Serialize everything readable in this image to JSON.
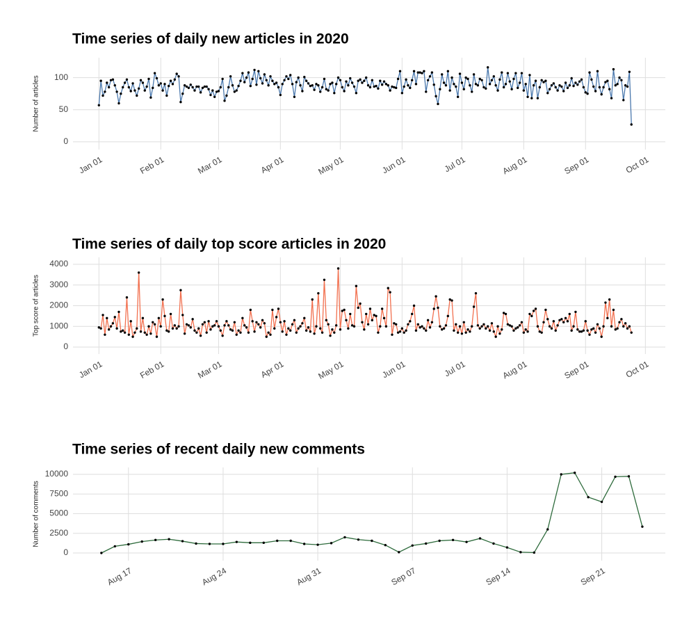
{
  "chart_data": [
    {
      "type": "line",
      "title": "Time series of daily new articles in 2020",
      "ylabel": "Number of articles",
      "color": "#4a78ad",
      "point_color": "#000000",
      "grid": true,
      "xlim": [
        -13,
        284
      ],
      "xticks": [
        {
          "value": 0,
          "label": "Jan 01"
        },
        {
          "value": 31,
          "label": "Feb 01"
        },
        {
          "value": 60,
          "label": "Mar 01"
        },
        {
          "value": 91,
          "label": "Apr 01"
        },
        {
          "value": 121,
          "label": "May 01"
        },
        {
          "value": 152,
          "label": "Jun 01"
        },
        {
          "value": 182,
          "label": "Jul 01"
        },
        {
          "value": 213,
          "label": "Aug 01"
        },
        {
          "value": 244,
          "label": "Sep 01"
        },
        {
          "value": 274,
          "label": "Oct 01"
        }
      ],
      "ylim": [
        -12,
        131
      ],
      "yticks": [
        0,
        50,
        100
      ],
      "x": [
        0,
        1,
        2,
        3,
        4,
        5,
        6,
        7,
        8,
        9,
        10,
        11,
        12,
        13,
        14,
        15,
        16,
        17,
        18,
        19,
        20,
        21,
        22,
        23,
        24,
        25,
        26,
        27,
        28,
        29,
        30,
        31,
        32,
        33,
        34,
        35,
        36,
        37,
        38,
        39,
        40,
        41,
        42,
        43,
        44,
        45,
        46,
        47,
        48,
        49,
        50,
        51,
        52,
        53,
        54,
        55,
        56,
        57,
        58,
        59,
        60,
        61,
        62,
        63,
        64,
        65,
        66,
        67,
        68,
        69,
        70,
        71,
        72,
        73,
        74,
        75,
        76,
        77,
        78,
        79,
        80,
        81,
        82,
        83,
        84,
        85,
        86,
        87,
        88,
        89,
        90,
        91,
        92,
        93,
        94,
        95,
        96,
        97,
        98,
        99,
        100,
        101,
        102,
        103,
        104,
        105,
        106,
        107,
        108,
        109,
        110,
        111,
        112,
        113,
        114,
        115,
        116,
        117,
        118,
        119,
        120,
        121,
        122,
        123,
        124,
        125,
        126,
        127,
        128,
        129,
        130,
        131,
        132,
        133,
        134,
        135,
        136,
        137,
        138,
        139,
        140,
        141,
        142,
        143,
        144,
        145,
        146,
        147,
        148,
        149,
        150,
        151,
        152,
        153,
        154,
        155,
        156,
        157,
        158,
        159,
        160,
        161,
        162,
        163,
        164,
        165,
        166,
        167,
        168,
        169,
        170,
        171,
        172,
        173,
        174,
        175,
        176,
        177,
        178,
        179,
        180,
        181,
        182,
        183,
        184,
        185,
        186,
        187,
        188,
        189,
        190,
        191,
        192,
        193,
        194,
        195,
        196,
        197,
        198,
        199,
        200,
        201,
        202,
        203,
        204,
        205,
        206,
        207,
        208,
        209,
        210,
        211,
        212,
        213,
        214,
        215,
        216,
        217,
        218,
        219,
        220,
        221,
        222,
        223,
        224,
        225,
        226,
        227,
        228,
        229,
        230,
        231,
        232,
        233,
        234,
        235,
        236,
        237,
        238,
        239,
        240,
        241,
        242,
        243,
        244,
        245,
        246,
        247,
        248,
        249,
        250,
        251,
        252,
        253,
        254,
        255,
        256,
        257,
        258,
        259,
        260,
        261,
        262,
        263,
        264,
        265,
        266,
        267
      ],
      "values": [
        57,
        95,
        72,
        78,
        92,
        85,
        96,
        97,
        88,
        78,
        60,
        75,
        85,
        92,
        97,
        85,
        79,
        91,
        80,
        72,
        83,
        96,
        92,
        80,
        86,
        98,
        69,
        84,
        107,
        99,
        88,
        91,
        80,
        90,
        72,
        87,
        95,
        90,
        97,
        106,
        102,
        62,
        75,
        88,
        86,
        84,
        89,
        85,
        80,
        86,
        86,
        77,
        84,
        86,
        86,
        82,
        73,
        80,
        70,
        78,
        79,
        85,
        98,
        64,
        72,
        85,
        102,
        88,
        78,
        80,
        87,
        95,
        107,
        93,
        100,
        108,
        87,
        98,
        112,
        89,
        110,
        99,
        91,
        105,
        96,
        88,
        102,
        95,
        90,
        92,
        85,
        73,
        90,
        96,
        102,
        98,
        104,
        90,
        70,
        93,
        100,
        88,
        79,
        101,
        95,
        91,
        87,
        88,
        81,
        90,
        88,
        78,
        85,
        98,
        82,
        80,
        90,
        92,
        76,
        90,
        100,
        96,
        85,
        79,
        94,
        88,
        99,
        92,
        86,
        76,
        95,
        97,
        92,
        95,
        100,
        88,
        85,
        96,
        86,
        87,
        83,
        95,
        89,
        94,
        90,
        88,
        80,
        86,
        85,
        84,
        98,
        110,
        76,
        86,
        97,
        88,
        84,
        96,
        110,
        90,
        108,
        108,
        107,
        110,
        78,
        96,
        102,
        108,
        89,
        71,
        59,
        82,
        105,
        92,
        88,
        110,
        80,
        100,
        90,
        86,
        70,
        106,
        92,
        82,
        100,
        98,
        88,
        78,
        105,
        90,
        88,
        98,
        96,
        85,
        83,
        116,
        90,
        96,
        102,
        88,
        80,
        97,
        108,
        85,
        90,
        107,
        94,
        82,
        98,
        107,
        84,
        92,
        107,
        80,
        90,
        70,
        104,
        68,
        88,
        95,
        68,
        85,
        96,
        93,
        95,
        76,
        82,
        88,
        91,
        85,
        80,
        88,
        86,
        79,
        92,
        84,
        88,
        99,
        87,
        92,
        89,
        94,
        97,
        85,
        77,
        75,
        108,
        97,
        86,
        79,
        110,
        85,
        74,
        85,
        93,
        95,
        82,
        68,
        113,
        88,
        90,
        100,
        96,
        65,
        88,
        86,
        109,
        27
      ]
    },
    {
      "type": "line",
      "title": "Time series of daily top score articles in 2020",
      "ylabel": "Top score of articles",
      "color": "#f2704f",
      "point_color": "#000000",
      "grid": true,
      "xlim": [
        -13,
        284
      ],
      "xticks": [
        {
          "value": 0,
          "label": "Jan 01"
        },
        {
          "value": 31,
          "label": "Feb 01"
        },
        {
          "value": 60,
          "label": "Mar 01"
        },
        {
          "value": 91,
          "label": "Apr 01"
        },
        {
          "value": 121,
          "label": "May 01"
        },
        {
          "value": 152,
          "label": "Jun 01"
        },
        {
          "value": 182,
          "label": "Jul 01"
        },
        {
          "value": 213,
          "label": "Aug 01"
        },
        {
          "value": 244,
          "label": "Sep 01"
        },
        {
          "value": 274,
          "label": "Oct 01"
        }
      ],
      "ylim": [
        -336,
        4336
      ],
      "yticks": [
        0,
        1000,
        2000,
        3000,
        4000
      ],
      "x": [
        0,
        1,
        2,
        3,
        4,
        5,
        6,
        7,
        8,
        9,
        10,
        11,
        12,
        13,
        14,
        15,
        16,
        17,
        18,
        19,
        20,
        21,
        22,
        23,
        24,
        25,
        26,
        27,
        28,
        29,
        30,
        31,
        32,
        33,
        34,
        35,
        36,
        37,
        38,
        39,
        40,
        41,
        42,
        43,
        44,
        45,
        46,
        47,
        48,
        49,
        50,
        51,
        52,
        53,
        54,
        55,
        56,
        57,
        58,
        59,
        60,
        61,
        62,
        63,
        64,
        65,
        66,
        67,
        68,
        69,
        70,
        71,
        72,
        73,
        74,
        75,
        76,
        77,
        78,
        79,
        80,
        81,
        82,
        83,
        84,
        85,
        86,
        87,
        88,
        89,
        90,
        91,
        92,
        93,
        94,
        95,
        96,
        97,
        98,
        99,
        100,
        101,
        102,
        103,
        104,
        105,
        106,
        107,
        108,
        109,
        110,
        111,
        112,
        113,
        114,
        115,
        116,
        117,
        118,
        119,
        120,
        121,
        122,
        123,
        124,
        125,
        126,
        127,
        128,
        129,
        130,
        131,
        132,
        133,
        134,
        135,
        136,
        137,
        138,
        139,
        140,
        141,
        142,
        143,
        144,
        145,
        146,
        147,
        148,
        149,
        150,
        151,
        152,
        153,
        154,
        155,
        156,
        157,
        158,
        159,
        160,
        161,
        162,
        163,
        164,
        165,
        166,
        167,
        168,
        169,
        170,
        171,
        172,
        173,
        174,
        175,
        176,
        177,
        178,
        179,
        180,
        181,
        182,
        183,
        184,
        185,
        186,
        187,
        188,
        189,
        190,
        191,
        192,
        193,
        194,
        195,
        196,
        197,
        198,
        199,
        200,
        201,
        202,
        203,
        204,
        205,
        206,
        207,
        208,
        209,
        210,
        211,
        212,
        213,
        214,
        215,
        216,
        217,
        218,
        219,
        220,
        221,
        222,
        223,
        224,
        225,
        226,
        227,
        228,
        229,
        230,
        231,
        232,
        233,
        234,
        235,
        236,
        237,
        238,
        239,
        240,
        241,
        242,
        243,
        244,
        245,
        246,
        247,
        248,
        249,
        250,
        251,
        252,
        253,
        254,
        255,
        256,
        257,
        258,
        259,
        260,
        261,
        262,
        263,
        264,
        265,
        266,
        267
      ],
      "values": [
        950,
        900,
        1550,
        600,
        1400,
        850,
        1000,
        1150,
        1450,
        900,
        1700,
        750,
        800,
        700,
        2400,
        600,
        1250,
        500,
        700,
        900,
        3600,
        750,
        1400,
        700,
        600,
        1000,
        650,
        1200,
        1100,
        500,
        1400,
        1000,
        2300,
        1500,
        800,
        750,
        1600,
        900,
        1050,
        900,
        1000,
        2750,
        1550,
        650,
        1100,
        1050,
        950,
        1350,
        800,
        700,
        900,
        550,
        1100,
        1200,
        700,
        1250,
        850,
        1000,
        1050,
        1250,
        1000,
        800,
        550,
        1050,
        1250,
        1050,
        850,
        800,
        1200,
        600,
        800,
        700,
        1400,
        1050,
        950,
        700,
        1800,
        1250,
        750,
        1200,
        1100,
        950,
        1300,
        1150,
        500,
        700,
        600,
        1800,
        900,
        1450,
        1850,
        1200,
        750,
        1250,
        600,
        900,
        800,
        1100,
        1300,
        700,
        900,
        1000,
        1150,
        1400,
        800,
        950,
        750,
        2300,
        650,
        1000,
        2600,
        900,
        700,
        3250,
        1300,
        1100,
        550,
        850,
        700,
        1050,
        3800,
        850,
        1750,
        1800,
        1300,
        900,
        1600,
        1050,
        1000,
        2950,
        1900,
        2100,
        1200,
        850,
        1600,
        1100,
        1850,
        1300,
        1550,
        1500,
        700,
        1000,
        1850,
        1400,
        1000,
        2850,
        2650,
        600,
        1150,
        1100,
        700,
        750,
        900,
        700,
        800,
        1100,
        1250,
        1600,
        2000,
        800,
        1100,
        950,
        1000,
        900,
        800,
        1300,
        950,
        1200,
        1850,
        2450,
        1900,
        1000,
        850,
        900,
        1050,
        1500,
        2300,
        2250,
        800,
        1100,
        700,
        1000,
        650,
        1200,
        700,
        850,
        750,
        1000,
        1950,
        2600,
        1050,
        900,
        1000,
        1100,
        900,
        1000,
        800,
        1150,
        750,
        500,
        1000,
        650,
        850,
        1650,
        1600,
        1100,
        1050,
        1000,
        800,
        900,
        950,
        1050,
        1200,
        700,
        850,
        750,
        1600,
        1500,
        1750,
        1850,
        1000,
        750,
        700,
        1200,
        1800,
        1350,
        1000,
        900,
        1250,
        800,
        1050,
        1300,
        1350,
        1200,
        1400,
        1250,
        1600,
        800,
        1000,
        1700,
        850,
        750,
        750,
        800,
        1250,
        800,
        600,
        850,
        900,
        700,
        1100,
        900,
        500,
        1000,
        2150,
        1400,
        2300,
        1000,
        1800,
        850,
        900,
        1200,
        1350,
        1000,
        1150,
        900,
        1000,
        700
      ]
    },
    {
      "type": "line",
      "title": "Time series of recent daily new comments",
      "ylabel": "Number of comments",
      "color": "#2e6b3c",
      "point_color": "#000000",
      "grid": true,
      "xlim": [
        -4.1,
        39.7
      ],
      "xticks": [
        {
          "value": 0,
          "label": "Aug 17"
        },
        {
          "value": 7,
          "label": "Aug 24"
        },
        {
          "value": 14,
          "label": "Aug 31"
        },
        {
          "value": 21,
          "label": "Sep 07"
        },
        {
          "value": 28,
          "label": "Sep 14"
        },
        {
          "value": 35,
          "label": "Sep 21"
        }
      ],
      "ylim": [
        -973,
        10885
      ],
      "yticks": [
        0,
        2500,
        5000,
        7500,
        10000
      ],
      "x": [
        -2,
        -1,
        0,
        1,
        2,
        3,
        4,
        5,
        6,
        7,
        8,
        9,
        10,
        11,
        12,
        13,
        14,
        15,
        16,
        17,
        18,
        19,
        20,
        21,
        22,
        23,
        24,
        25,
        26,
        27,
        28,
        29,
        30,
        31,
        32,
        33,
        34,
        35,
        36,
        37,
        38
      ],
      "values": [
        0,
        850,
        1100,
        1450,
        1650,
        1750,
        1500,
        1200,
        1150,
        1150,
        1400,
        1300,
        1300,
        1550,
        1550,
        1150,
        1050,
        1250,
        2000,
        1700,
        1550,
        1000,
        100,
        950,
        1200,
        1550,
        1650,
        1400,
        1850,
        1200,
        700,
        100,
        50,
        3000,
        10000,
        10200,
        7100,
        6500,
        9700,
        9750,
        3350
      ]
    }
  ]
}
